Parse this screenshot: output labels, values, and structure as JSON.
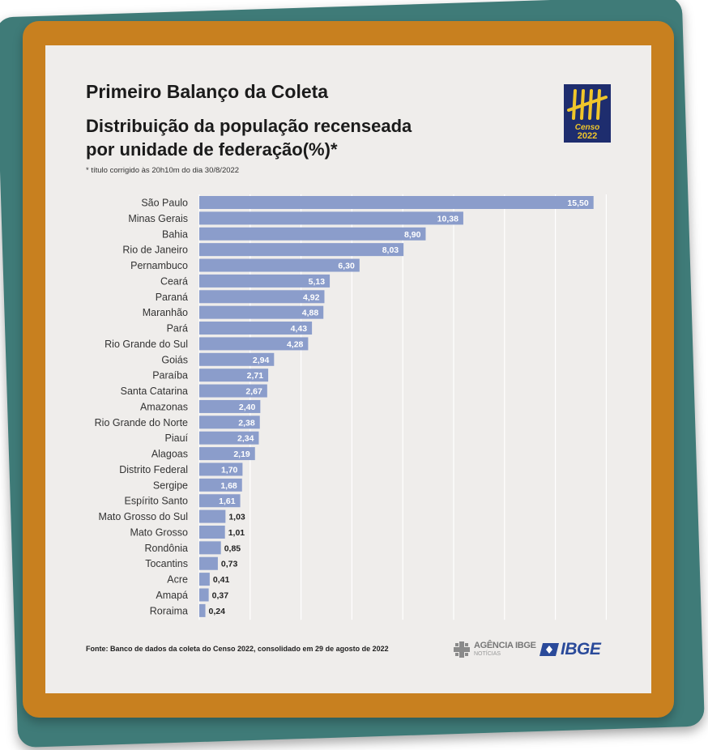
{
  "header": {
    "title": "Primeiro Balanço da Coleta",
    "subtitle": "Distribuição da população recenseada por unidade de federação(%)*",
    "note": "* título corrigido às 20h10m do dia 30/8/2022"
  },
  "logo": {
    "word": "Censo",
    "year": "2022"
  },
  "footer": {
    "source": "Fonte: Banco de dados da coleta do Censo 2022, consolidado em 29 de agosto de 2022",
    "agencia_line1": "AGÊNCIA IBGE",
    "agencia_line2": "NOTÍCIAS",
    "ibge": "IBGE"
  },
  "colors": {
    "bar": "#8b9dcb",
    "label_inside": "#ffffff",
    "label_outside": "#222222",
    "grid": "#ffffff",
    "frame": "#c8801f",
    "back_card": "#3f7b78",
    "paper": "#efedeb"
  },
  "chart_data": {
    "type": "bar",
    "orientation": "horizontal",
    "title": "",
    "xlabel": "",
    "ylabel": "",
    "xlim": [
      0,
      16
    ],
    "grid": true,
    "categories": [
      "São Paulo",
      "Minas Gerais",
      "Bahia",
      "Rio de Janeiro",
      "Pernambuco",
      "Ceará",
      "Paraná",
      "Maranhão",
      "Pará",
      "Rio Grande do Sul",
      "Goiás",
      "Paraíba",
      "Santa Catarina",
      "Amazonas",
      "Rio Grande do Norte",
      "Piauí",
      "Alagoas",
      "Distrito Federal",
      "Sergipe",
      "Espírito Santo",
      "Mato Grosso do Sul",
      "Mato Grosso",
      "Rondônia",
      "Tocantins",
      "Acre",
      "Amapá",
      "Roraima"
    ],
    "values": [
      15.5,
      10.38,
      8.9,
      8.03,
      6.3,
      5.13,
      4.92,
      4.88,
      4.43,
      4.28,
      2.94,
      2.71,
      2.67,
      2.4,
      2.38,
      2.34,
      2.19,
      1.7,
      1.68,
      1.61,
      1.03,
      1.01,
      0.85,
      0.73,
      0.41,
      0.37,
      0.24
    ],
    "value_labels": [
      "15,50",
      "10,38",
      "8,90",
      "8,03",
      "6,30",
      "5,13",
      "4,92",
      "4,88",
      "4,43",
      "4,28",
      "2,94",
      "2,71",
      "2,67",
      "2,40",
      "2,38",
      "2,34",
      "2,19",
      "1,70",
      "1,68",
      "1,61",
      "1,03",
      "1,01",
      "0,85",
      "0,73",
      "0,41",
      "0,37",
      "0,24"
    ]
  }
}
